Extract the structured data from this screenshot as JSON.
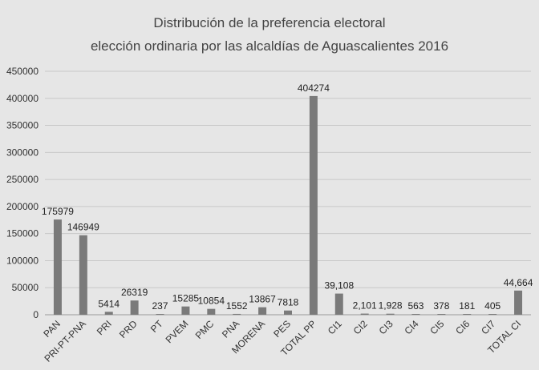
{
  "chart_data": {
    "type": "bar",
    "title_line1": "Distribución de la preferencia electoral",
    "title_line2": "elección ordinaria por las alcaldías de Aguascalientes 2016",
    "ylim": [
      0,
      450000
    ],
    "ytick_values": [
      0,
      50000,
      100000,
      150000,
      200000,
      250000,
      300000,
      350000,
      400000,
      450000
    ],
    "ytick_labels": [
      "0",
      "50000",
      "100000",
      "150000",
      "200000",
      "250000",
      "300000",
      "350000",
      "400000",
      "450000"
    ],
    "grid": true,
    "bar_color": "#7a7a7a",
    "categories": [
      "PAN",
      "PRI-PT-PNA",
      "PRI",
      "PRD",
      "PT",
      "PVEM",
      "PMC",
      "PNA",
      "MORENA",
      "PES",
      "TOTAL PP",
      "CI1",
      "CI2",
      "CI3",
      "CI4",
      "CI5",
      "CI6",
      "CI7",
      "TOTAL CI"
    ],
    "values": [
      175979,
      146949,
      5414,
      26319,
      237,
      15285,
      10854,
      1552,
      13867,
      7818,
      404274,
      39108,
      2101,
      1928,
      563,
      378,
      181,
      405,
      44664
    ],
    "data_labels": [
      "175979",
      "146949",
      "5414",
      "26319",
      "237",
      "15285",
      "10854",
      "1552",
      "13867",
      "7818",
      "404274",
      "39,108",
      "2,101",
      "1,928",
      "563",
      "378",
      "181",
      "405",
      "44,664"
    ]
  }
}
